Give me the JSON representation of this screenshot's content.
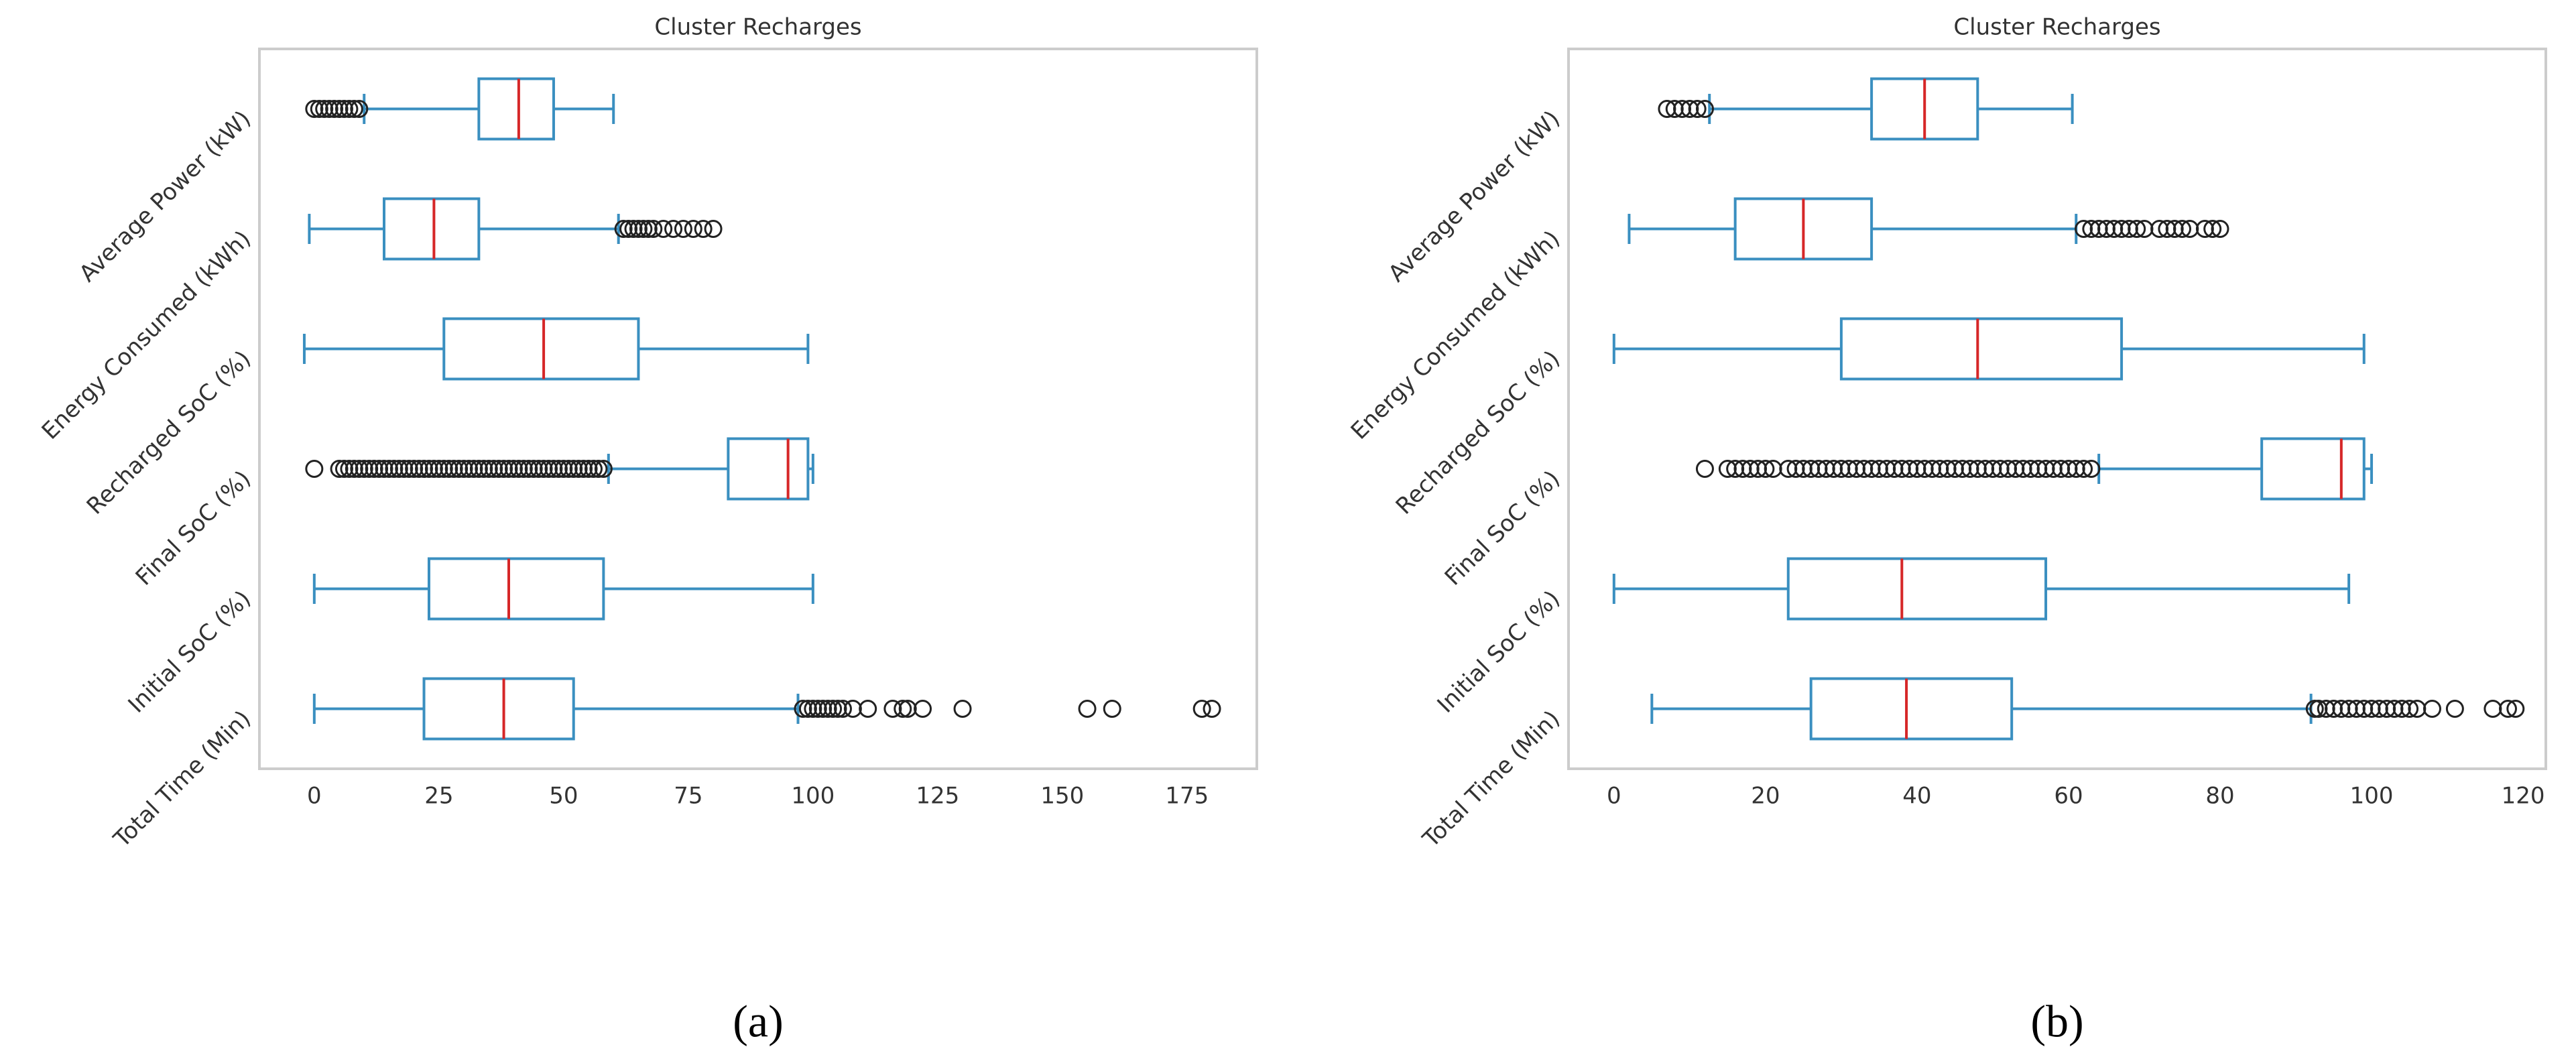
{
  "chart_data": [
    {
      "type": "box",
      "title": "Cluster Recharges",
      "label": "(a)",
      "categories": [
        "Total Time (Min)",
        "Initial SoC (%)",
        "Final SoC (%)",
        "Recharged SoC (%)",
        "Energy Consumed (kWh)",
        "Average Power (kW)"
      ],
      "boxes": [
        {
          "whislo": 0,
          "q1": 22,
          "med": 38,
          "q3": 52,
          "whishi": 97,
          "fliers": [
            98,
            99,
            100,
            101,
            102,
            103,
            104,
            105,
            106,
            108,
            111,
            116,
            118,
            119,
            122,
            130,
            155,
            160,
            178,
            180
          ]
        },
        {
          "whislo": 0,
          "q1": 23,
          "med": 39,
          "q3": 58,
          "whishi": 100,
          "fliers": []
        },
        {
          "whislo": 59,
          "q1": 83,
          "med": 95,
          "q3": 99,
          "whishi": 100,
          "fliers": [
            0,
            5,
            6,
            7,
            8,
            9,
            10,
            11,
            12,
            13,
            14,
            15,
            16,
            17,
            18,
            19,
            20,
            21,
            22,
            23,
            24,
            25,
            26,
            27,
            28,
            29,
            30,
            31,
            32,
            33,
            34,
            35,
            36,
            37,
            38,
            39,
            40,
            41,
            42,
            43,
            44,
            45,
            46,
            47,
            48,
            49,
            50,
            51,
            52,
            53,
            54,
            55,
            56,
            57,
            58
          ]
        },
        {
          "whislo": -2,
          "q1": 26,
          "med": 46,
          "q3": 65,
          "whishi": 99,
          "fliers": []
        },
        {
          "whislo": -1,
          "q1": 14,
          "med": 24,
          "q3": 33,
          "whishi": 61,
          "fliers": [
            62,
            63,
            64,
            65,
            66,
            67,
            68,
            70,
            72,
            74,
            76,
            78,
            80
          ]
        },
        {
          "whislo": 10,
          "q1": 33,
          "med": 41,
          "q3": 48,
          "whishi": 60,
          "fliers": [
            0,
            1,
            2,
            3,
            4,
            5,
            6,
            7,
            8,
            9
          ]
        }
      ],
      "box_color": "#3a8fc0",
      "median_color": "#d62728",
      "xlim": [
        -11,
        189
      ],
      "xticks": [
        0,
        25,
        50,
        75,
        100,
        125,
        150,
        175
      ],
      "grid": false
    },
    {
      "type": "box",
      "title": "Cluster Recharges",
      "label": "(b)",
      "categories": [
        "Total Time (Min)",
        "Initial SoC (%)",
        "Final SoC (%)",
        "Recharged SoC (%)",
        "Energy Consumed (kWh)",
        "Average Power (kW)"
      ],
      "boxes": [
        {
          "whislo": 5,
          "q1": 26,
          "med": 38.6,
          "q3": 52.5,
          "whishi": 92,
          "fliers": [
            92.5,
            93,
            94,
            95,
            96,
            97,
            98,
            99,
            100,
            101,
            102,
            103,
            104,
            105,
            106,
            108,
            111,
            116,
            118,
            119
          ]
        },
        {
          "whislo": 0,
          "q1": 23,
          "med": 38,
          "q3": 57,
          "whishi": 97,
          "fliers": []
        },
        {
          "whislo": 64,
          "q1": 85.5,
          "med": 96,
          "q3": 99,
          "whishi": 100,
          "fliers": [
            12,
            15,
            16,
            17,
            18,
            19,
            20,
            21,
            23,
            24,
            25,
            26,
            27,
            28,
            29,
            30,
            31,
            32,
            33,
            34,
            35,
            36,
            37,
            38,
            39,
            40,
            41,
            42,
            43,
            44,
            45,
            46,
            47,
            48,
            49,
            50,
            51,
            52,
            53,
            54,
            55,
            56,
            57,
            58,
            59,
            60,
            61,
            62,
            63
          ]
        },
        {
          "whislo": 0,
          "q1": 30,
          "med": 48,
          "q3": 67,
          "whishi": 99,
          "fliers": []
        },
        {
          "whislo": 2,
          "q1": 16,
          "med": 25,
          "q3": 34,
          "whishi": 61,
          "fliers": [
            62,
            63,
            64,
            65,
            66,
            67,
            68,
            69,
            70,
            72,
            73,
            74,
            75,
            76,
            78,
            79,
            80
          ]
        },
        {
          "whislo": 12.6,
          "q1": 34,
          "med": 41,
          "q3": 48,
          "whishi": 60.5,
          "fliers": [
            7,
            8,
            9,
            10,
            11,
            12
          ]
        }
      ],
      "box_color": "#3a8fc0",
      "median_color": "#d62728",
      "xlim": [
        -6,
        123
      ],
      "xticks": [
        0,
        20,
        40,
        60,
        80,
        100,
        120
      ],
      "grid": false
    }
  ]
}
